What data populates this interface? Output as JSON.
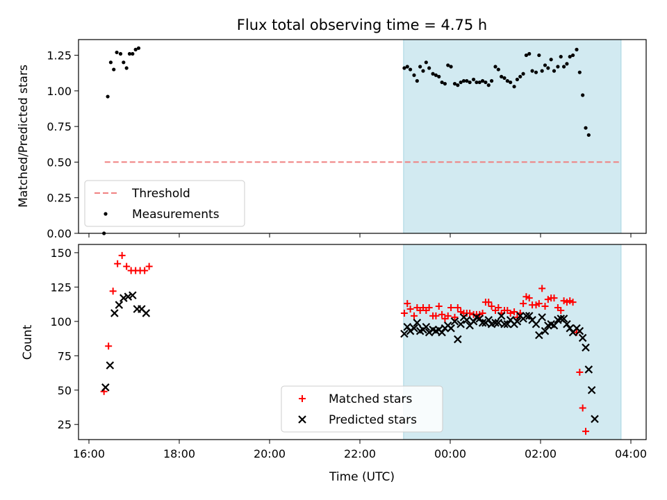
{
  "title": "Flux total observing time = 4.75 h",
  "chart_data": [
    {
      "type": "scatter",
      "panel": "top",
      "ylabel": "Matched/Predicted stars",
      "xlabel": "",
      "ylim": [
        0,
        1.36
      ],
      "yticks": [
        "0.00",
        "0.25",
        "0.50",
        "0.75",
        "1.00",
        "1.25"
      ],
      "threshold": {
        "name": "Threshold",
        "value": 0.5,
        "x_start": "16:21",
        "x_end": "03:47",
        "color": "#f08080"
      },
      "series": [
        {
          "name": "Measurements",
          "color": "#000000",
          "x": [
            "16:20",
            "16:25",
            "16:29",
            "16:33",
            "16:37",
            "16:42",
            "16:46",
            "16:50",
            "16:54",
            "16:58",
            "17:02",
            "17:06",
            "17:10",
            "17:14",
            "22:59",
            "23:03",
            "23:07",
            "23:12",
            "23:16",
            "23:20",
            "23:24",
            "23:28",
            "23:32",
            "23:37",
            "23:41",
            "23:45",
            "23:49",
            "23:53",
            "23:57",
            "00:01",
            "00:06",
            "00:10",
            "00:14",
            "00:18",
            "00:22",
            "00:26",
            "00:31",
            "00:35",
            "00:39",
            "00:43",
            "00:47",
            "00:51",
            "00:55",
            "01:00",
            "01:04",
            "01:08",
            "01:12",
            "01:16",
            "01:20",
            "01:25",
            "01:29",
            "01:33",
            "01:37",
            "01:41",
            "01:45",
            "01:49",
            "01:54",
            "01:58",
            "02:02",
            "02:06",
            "02:10",
            "02:14",
            "02:18",
            "02:23",
            "02:27",
            "02:31",
            "02:35",
            "02:39",
            "02:43",
            "02:48",
            "02:52",
            "02:56",
            "03:00",
            "03:04",
            "03:08",
            "03:12",
            "03:17",
            "03:21",
            "03:25",
            "03:29",
            "03:33",
            "03:37",
            "03:42",
            "03:46",
            "03:50"
          ],
          "y": [
            0.0,
            0.96,
            1.2,
            1.15,
            1.27,
            1.26,
            1.2,
            1.16,
            1.26,
            1.26,
            1.29,
            1.3,
            null,
            null,
            1.16,
            1.17,
            1.15,
            1.11,
            1.07,
            1.17,
            1.14,
            1.2,
            1.16,
            1.12,
            1.11,
            1.1,
            1.06,
            1.05,
            1.18,
            1.17,
            1.05,
            1.04,
            1.06,
            1.07,
            1.07,
            1.06,
            1.08,
            1.06,
            1.06,
            1.07,
            1.06,
            1.04,
            1.07,
            1.17,
            1.15,
            1.1,
            1.09,
            1.07,
            1.06,
            1.03,
            1.08,
            1.1,
            1.12,
            1.25,
            1.26,
            1.14,
            1.13,
            1.25,
            1.14,
            1.18,
            1.16,
            1.22,
            1.14,
            1.17,
            1.24,
            1.17,
            1.19,
            1.24,
            1.25,
            1.29,
            1.13,
            0.97,
            0.74,
            0.69,
            null,
            null,
            null,
            null,
            null,
            null,
            null,
            null,
            null,
            null,
            null
          ]
        }
      ]
    },
    {
      "type": "scatter",
      "panel": "bottom",
      "ylabel": "Count",
      "xlabel": "Time (UTC)",
      "ylim": [
        14,
        156
      ],
      "yticks": [
        "25",
        "50",
        "75",
        "100",
        "125",
        "150"
      ],
      "xticks": [
        "16:00",
        "18:00",
        "20:00",
        "22:00",
        "00:00",
        "02:00",
        "04:00"
      ],
      "shaded_region": {
        "x_start": "22:58",
        "x_end": "03:47",
        "color": "#add8e6"
      },
      "series": [
        {
          "name": "Matched stars",
          "color": "#ff0000",
          "marker": "plus",
          "x": [
            "16:20",
            "16:26",
            "16:32",
            "16:38",
            "16:44",
            "16:50",
            "16:56",
            "17:02",
            "17:08",
            "17:14",
            "17:20",
            "22:59",
            "23:03",
            "23:07",
            "23:12",
            "23:16",
            "23:20",
            "23:24",
            "23:28",
            "23:32",
            "23:37",
            "23:41",
            "23:45",
            "23:49",
            "23:53",
            "23:57",
            "00:01",
            "00:06",
            "00:10",
            "00:14",
            "00:18",
            "00:22",
            "00:26",
            "00:31",
            "00:35",
            "00:39",
            "00:43",
            "00:47",
            "00:51",
            "00:55",
            "01:00",
            "01:04",
            "01:08",
            "01:12",
            "01:16",
            "01:20",
            "01:25",
            "01:29",
            "01:33",
            "01:37",
            "01:41",
            "01:45",
            "01:49",
            "01:54",
            "01:58",
            "02:02",
            "02:06",
            "02:10",
            "02:14",
            "02:18",
            "02:23",
            "02:27",
            "02:31",
            "02:35",
            "02:39",
            "02:43",
            "02:48",
            "02:52",
            "02:56",
            "03:00",
            "03:04",
            "03:08",
            "03:12",
            "03:17",
            "03:21",
            "03:25",
            "03:29",
            "03:33",
            "03:37",
            "03:42",
            "03:46",
            "03:50"
          ],
          "y": [
            49,
            82,
            122,
            142,
            148,
            140,
            137,
            137,
            137,
            137,
            140,
            106,
            113,
            109,
            104,
            110,
            108,
            110,
            108,
            110,
            104,
            104,
            111,
            105,
            102,
            104,
            110,
            103,
            110,
            107,
            106,
            106,
            106,
            105,
            105,
            105,
            106,
            114,
            114,
            111,
            108,
            110,
            106,
            108,
            108,
            106,
            107,
            103,
            106,
            113,
            118,
            117,
            112,
            112,
            113,
            124,
            111,
            116,
            117,
            117,
            110,
            108,
            115,
            114,
            115,
            114,
            92,
            63,
            37,
            20,
            null,
            null,
            null,
            null,
            null,
            null,
            null,
            null,
            null,
            null,
            null,
            null
          ],
          "y_note": ""
        },
        {
          "name": "Predicted stars",
          "color": "#000000",
          "marker": "x",
          "x": [
            "16:22",
            "16:28",
            "16:34",
            "16:40",
            "16:46",
            "16:52",
            "16:58",
            "17:04",
            "17:10",
            "17:16",
            "22:59",
            "23:03",
            "23:07",
            "23:12",
            "23:16",
            "23:20",
            "23:24",
            "23:28",
            "23:32",
            "23:37",
            "23:41",
            "23:45",
            "23:49",
            "23:53",
            "23:57",
            "00:01",
            "00:06",
            "00:10",
            "00:14",
            "00:18",
            "00:22",
            "00:26",
            "00:31",
            "00:35",
            "00:39",
            "00:43",
            "00:47",
            "00:51",
            "00:55",
            "01:00",
            "01:04",
            "01:08",
            "01:12",
            "01:16",
            "01:20",
            "01:25",
            "01:29",
            "01:33",
            "01:37",
            "01:41",
            "01:45",
            "01:49",
            "01:54",
            "01:58",
            "02:02",
            "02:06",
            "02:10",
            "02:14",
            "02:18",
            "02:23",
            "02:27",
            "02:31",
            "02:35",
            "02:39",
            "02:43",
            "02:48",
            "02:52",
            "02:56",
            "03:00",
            "03:04",
            "03:08",
            "03:12",
            "03:17",
            "03:21",
            "03:25",
            "03:29",
            "03:33",
            "03:37",
            "03:42",
            "03:46",
            "03:50"
          ],
          "y": [
            52,
            68,
            106,
            112,
            117,
            118,
            119,
            109,
            109,
            106,
            91,
            96,
            93,
            95,
            99,
            93,
            94,
            96,
            92,
            94,
            93,
            94,
            92,
            95,
            97,
            95,
            100,
            87,
            98,
            103,
            101,
            97,
            100,
            103,
            102,
            99,
            99,
            101,
            98,
            99,
            99,
            104,
            98,
            98,
            101,
            98,
            100,
            104,
            102,
            104,
            104,
            101,
            98,
            90,
            103,
            93,
            97,
            98,
            97,
            101,
            102,
            102,
            98,
            95,
            92,
            95,
            93,
            88,
            81,
            65,
            50,
            29,
            null,
            null,
            null,
            null,
            null,
            null,
            null,
            null,
            null
          ]
        }
      ]
    }
  ],
  "legend_top": [
    "Threshold",
    "Measurements"
  ],
  "legend_bottom": [
    "Matched stars",
    "Predicted stars"
  ]
}
